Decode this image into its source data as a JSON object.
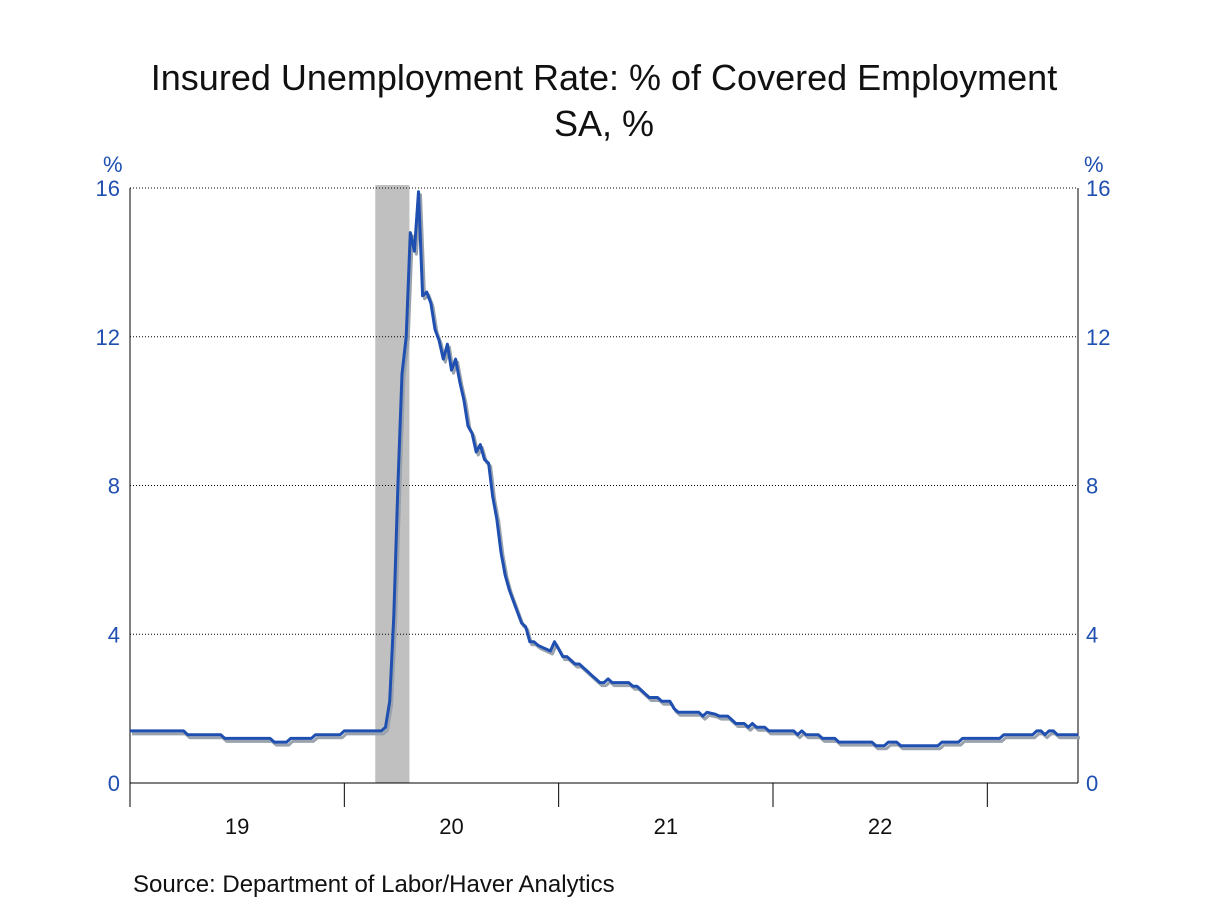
{
  "chart_data": {
    "type": "line",
    "title": "Insured Unemployment Rate: % of Covered Employment",
    "subtitle": "SA, %",
    "y_unit_left": "%",
    "y_unit_right": "%",
    "ylim": [
      0,
      16
    ],
    "yticks": [
      0,
      4,
      8,
      12,
      16
    ],
    "ytick_labels": [
      "0",
      "4",
      "8",
      "12",
      "16"
    ],
    "x_unit": "weeks",
    "x_range": [
      0,
      230
    ],
    "year_labels": [
      {
        "label": "19",
        "x": 26
      },
      {
        "label": "20",
        "x": 78
      },
      {
        "label": "21",
        "x": 130
      },
      {
        "label": "22",
        "x": 182
      }
    ],
    "year_boundaries": [
      52,
      104,
      156,
      208
    ],
    "grid": true,
    "recession_shading": [
      {
        "start": 59.5,
        "end": 67.8
      }
    ],
    "colors": {
      "line": "#1f4fb0",
      "shadow": "#9aa3ad",
      "recession": "#c0c0c0",
      "axis_text": "#1f4fb0"
    },
    "series": [
      {
        "points": [
          [
            0,
            1.4
          ],
          [
            13,
            1.4
          ],
          [
            14,
            1.3
          ],
          [
            22,
            1.3
          ],
          [
            23,
            1.2
          ],
          [
            34,
            1.2
          ],
          [
            35,
            1.1
          ],
          [
            38,
            1.1
          ],
          [
            39,
            1.2
          ],
          [
            44,
            1.2
          ],
          [
            45,
            1.3
          ],
          [
            51,
            1.3
          ],
          [
            52,
            1.4
          ],
          [
            61,
            1.4
          ],
          [
            62,
            1.5
          ],
          [
            63,
            2.2
          ],
          [
            64,
            4.5
          ],
          [
            65,
            8.0
          ],
          [
            66,
            11.0
          ],
          [
            67,
            12.0
          ],
          [
            68,
            14.8
          ],
          [
            69,
            14.3
          ],
          [
            70,
            15.9
          ],
          [
            71,
            13.1
          ],
          [
            72,
            13.2
          ],
          [
            73,
            12.9
          ],
          [
            74,
            12.2
          ],
          [
            75,
            11.9
          ],
          [
            76,
            11.4
          ],
          [
            77,
            11.8
          ],
          [
            78,
            11.1
          ],
          [
            79,
            11.4
          ],
          [
            80,
            10.8
          ],
          [
            81,
            10.3
          ],
          [
            82,
            9.6
          ],
          [
            83,
            9.4
          ],
          [
            84,
            8.9
          ],
          [
            85,
            9.1
          ],
          [
            86,
            8.7
          ],
          [
            87,
            8.6
          ],
          [
            88,
            7.7
          ],
          [
            89,
            7.1
          ],
          [
            90,
            6.2
          ],
          [
            91,
            5.6
          ],
          [
            92,
            5.2
          ],
          [
            93,
            4.9
          ],
          [
            94,
            4.6
          ],
          [
            95,
            4.3
          ],
          [
            96,
            4.2
          ],
          [
            97,
            3.8
          ],
          [
            98,
            3.8
          ],
          [
            99,
            3.7
          ],
          [
            100,
            3.65
          ],
          [
            101,
            3.6
          ],
          [
            102,
            3.55
          ],
          [
            103,
            3.8
          ],
          [
            104,
            3.6
          ],
          [
            105,
            3.4
          ],
          [
            106,
            3.4
          ],
          [
            107,
            3.3
          ],
          [
            108,
            3.2
          ],
          [
            109,
            3.2
          ],
          [
            110,
            3.1
          ],
          [
            111,
            3.0
          ],
          [
            112,
            2.9
          ],
          [
            113,
            2.8
          ],
          [
            114,
            2.7
          ],
          [
            115,
            2.7
          ],
          [
            116,
            2.8
          ],
          [
            117,
            2.7
          ],
          [
            121,
            2.7
          ],
          [
            122,
            2.6
          ],
          [
            123,
            2.6
          ],
          [
            124,
            2.5
          ],
          [
            125,
            2.4
          ],
          [
            126,
            2.3
          ],
          [
            128,
            2.3
          ],
          [
            129,
            2.2
          ],
          [
            131,
            2.2
          ],
          [
            132,
            2.0
          ],
          [
            133,
            1.9
          ],
          [
            138,
            1.9
          ],
          [
            139,
            1.8
          ],
          [
            140,
            1.9
          ],
          [
            142,
            1.85
          ],
          [
            143,
            1.8
          ],
          [
            145,
            1.8
          ],
          [
            146,
            1.7
          ],
          [
            147,
            1.6
          ],
          [
            149,
            1.6
          ],
          [
            150,
            1.5
          ],
          [
            151,
            1.6
          ],
          [
            152,
            1.5
          ],
          [
            154,
            1.5
          ],
          [
            155,
            1.4
          ],
          [
            161,
            1.4
          ],
          [
            162,
            1.3
          ],
          [
            163,
            1.4
          ],
          [
            164,
            1.3
          ],
          [
            167,
            1.3
          ],
          [
            168,
            1.2
          ],
          [
            171,
            1.2
          ],
          [
            172,
            1.1
          ],
          [
            180,
            1.1
          ],
          [
            181,
            1.0
          ],
          [
            183,
            1.0
          ],
          [
            184,
            1.1
          ],
          [
            186,
            1.1
          ],
          [
            187,
            1.0
          ],
          [
            196,
            1.0
          ],
          [
            197,
            1.1
          ],
          [
            201,
            1.1
          ],
          [
            202,
            1.2
          ],
          [
            211,
            1.2
          ],
          [
            212,
            1.3
          ],
          [
            219,
            1.3
          ],
          [
            220,
            1.4
          ],
          [
            221,
            1.4
          ],
          [
            222,
            1.3
          ],
          [
            223,
            1.4
          ],
          [
            224,
            1.4
          ],
          [
            225,
            1.3
          ],
          [
            230,
            1.3
          ]
        ]
      }
    ],
    "source": "Source:  Department of Labor/Haver Analytics"
  }
}
